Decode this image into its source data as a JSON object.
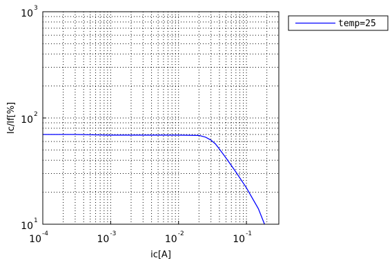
{
  "chart_data": {
    "type": "line",
    "xscale": "log",
    "yscale": "log",
    "xlim": [
      0.0001,
      0.3
    ],
    "ylim": [
      10,
      1000
    ],
    "xlabel": "ic[A]",
    "ylabel": "Ic/If[%]",
    "grid": true,
    "legend_position": "outside-right-top",
    "x_ticks": [
      {
        "base": "10",
        "exp": "-4"
      },
      {
        "base": "10",
        "exp": "-3"
      },
      {
        "base": "10",
        "exp": "-2"
      },
      {
        "base": "10",
        "exp": "-1"
      }
    ],
    "y_ticks": [
      {
        "base": "10",
        "exp": "1"
      },
      {
        "base": "10",
        "exp": "2"
      },
      {
        "base": "10",
        "exp": "3"
      }
    ],
    "series": [
      {
        "name": "temp=25",
        "color": "#0000ff",
        "x": [
          0.0001,
          0.0003,
          0.001,
          0.003,
          0.01,
          0.02,
          0.025,
          0.03,
          0.035,
          0.04,
          0.05,
          0.07,
          0.1,
          0.15,
          0.185
        ],
        "y": [
          70,
          70,
          69,
          69,
          69,
          68.5,
          66,
          62,
          57,
          51,
          42,
          31,
          22,
          14,
          10
        ]
      }
    ]
  }
}
